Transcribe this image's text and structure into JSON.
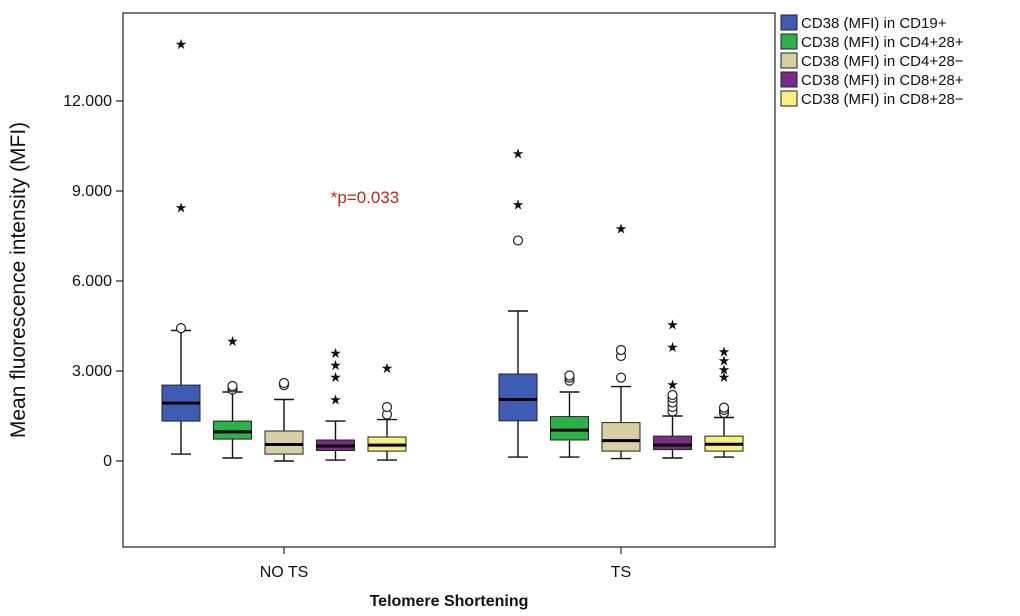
{
  "chart_data": {
    "type": "boxplot",
    "title": "",
    "xlabel": "Telomere Shortening",
    "ylabel": "Mean fluorescence intensity (MFI)",
    "ylim": [
      -3000,
      14300
    ],
    "yticks": [
      0,
      3000,
      6000,
      9000,
      12000
    ],
    "ytick_labels": [
      "0",
      "3.000",
      "6.000",
      "9.000",
      "12.000"
    ],
    "categories": [
      "NO TS",
      "TS"
    ],
    "annotation": {
      "text": "*p=0.033",
      "color": "#c0281e",
      "x_value": 4500,
      "y_value": 8800,
      "group": "NO TS"
    },
    "legend_position": "top-right",
    "series": [
      {
        "name": "CD38 (MFI) in CD19+",
        "color": "#3f5cb5",
        "boxes": [
          {
            "min": 230,
            "q1": 1330,
            "median": 1930,
            "q3": 2530,
            "max": 4350,
            "outliers": [
              4430
            ],
            "extremes": [
              8450,
              13900
            ]
          },
          {
            "min": 130,
            "q1": 1340,
            "median": 2050,
            "q3": 2900,
            "max": 5000,
            "outliers": [
              7350
            ],
            "extremes": [
              8550,
              10250
            ]
          }
        ]
      },
      {
        "name": "CD38 (MFI) in CD4+28+",
        "color": "#2db24a",
        "boxes": [
          {
            "min": 100,
            "q1": 730,
            "median": 970,
            "q3": 1330,
            "max": 2300,
            "outliers": [
              2380,
              2450,
              2500
            ],
            "extremes": [
              4000
            ]
          },
          {
            "min": 130,
            "q1": 700,
            "median": 1030,
            "q3": 1480,
            "max": 2300,
            "outliers": [
              2680,
              2780,
              2850
            ],
            "extremes": []
          }
        ]
      },
      {
        "name": "CD38 (MFI) in CD4+28−",
        "color": "#d8cfa4",
        "boxes": [
          {
            "min": 0,
            "q1": 230,
            "median": 550,
            "q3": 1000,
            "max": 2050,
            "outliers": [
              2530,
              2600
            ],
            "extremes": []
          },
          {
            "min": 80,
            "q1": 330,
            "median": 680,
            "q3": 1280,
            "max": 2480,
            "outliers": [
              2780,
              3500,
              3700
            ],
            "extremes": [
              7750
            ]
          }
        ]
      },
      {
        "name": "CD38 (MFI) in CD8+28+",
        "color": "#7b2c84",
        "boxes": [
          {
            "min": 30,
            "q1": 350,
            "median": 500,
            "q3": 700,
            "max": 1330,
            "outliers": [],
            "extremes": [
              2050,
              2800,
              3200,
              3600
            ]
          },
          {
            "min": 100,
            "q1": 380,
            "median": 530,
            "q3": 830,
            "max": 1500,
            "outliers": [
              1650,
              1800,
              1950,
              2100,
              2200
            ],
            "extremes": [
              2550,
              3800,
              4550
            ]
          }
        ]
      },
      {
        "name": "CD38 (MFI) in CD8+28−",
        "color": "#f7f07c",
        "boxes": [
          {
            "min": 30,
            "q1": 330,
            "median": 530,
            "q3": 800,
            "max": 1380,
            "outliers": [
              1550,
              1800
            ],
            "extremes": [
              3100
            ]
          },
          {
            "min": 130,
            "q1": 330,
            "median": 560,
            "q3": 830,
            "max": 1450,
            "outliers": [
              1600,
              1700,
              1780
            ],
            "extremes": [
              2800,
              3050,
              3350,
              3650
            ]
          }
        ]
      }
    ]
  }
}
